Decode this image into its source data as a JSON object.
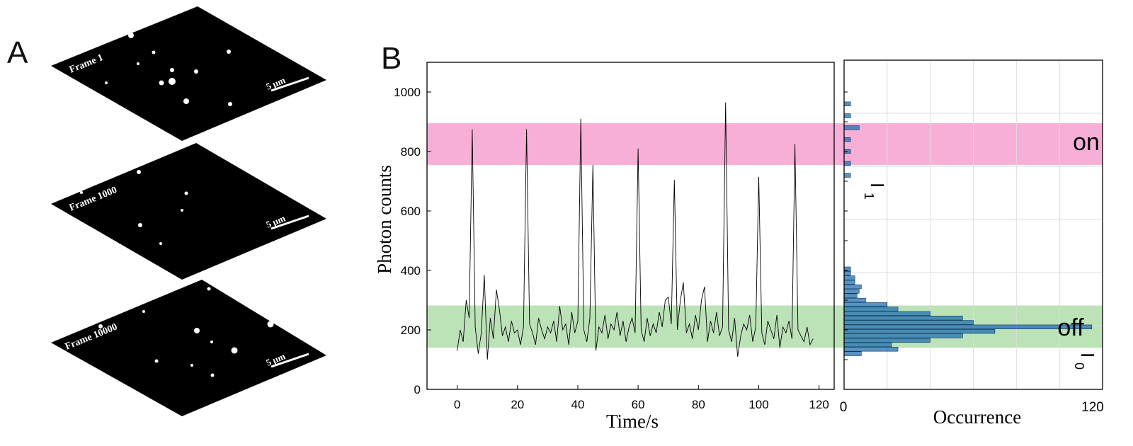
{
  "panel_a": {
    "letter": "A",
    "frames": [
      {
        "label": "Frame 1",
        "scale_label": "5 μm"
      },
      {
        "label": "Frame 1000",
        "scale_label": "5 μm"
      },
      {
        "label": "Frame 10000",
        "scale_label": "5 μm"
      }
    ]
  },
  "panel_b": {
    "letter": "B",
    "band_labels": {
      "on": "on",
      "off": "off",
      "i1": "I",
      "i1_sub": "1",
      "i0": "I",
      "i0_sub": "0"
    }
  },
  "colors": {
    "on_band": "#f7a6d3",
    "off_band": "#b5dfb0",
    "trace": "#000000",
    "hist_bar": "#1f6fb2"
  },
  "chart_data": [
    {
      "type": "line",
      "title": "",
      "xlabel": "Time/s",
      "ylabel": "Photon counts",
      "xlim": [
        -10,
        125
      ],
      "ylim": [
        0,
        1100
      ],
      "xticks": [
        0,
        20,
        40,
        60,
        80,
        100,
        120
      ],
      "yticks": [
        0,
        200,
        400,
        600,
        800,
        1000
      ],
      "bands": [
        {
          "name": "on",
          "y_range": [
            755,
            895
          ]
        },
        {
          "name": "off",
          "y_range": [
            140,
            282
          ]
        }
      ],
      "series": [
        {
          "x": [
            0,
            1,
            2,
            3,
            4,
            5,
            6,
            7,
            8,
            9,
            10,
            11,
            12,
            13,
            14,
            15,
            16,
            17,
            18,
            19,
            20,
            21,
            22,
            23,
            24,
            25,
            26,
            27,
            28,
            29,
            30,
            31,
            32,
            33,
            34,
            35,
            36,
            37,
            38,
            39,
            40,
            41,
            42,
            43,
            44,
            45,
            46,
            47,
            48,
            49,
            50,
            51,
            52,
            53,
            54,
            55,
            56,
            57,
            58,
            59,
            60,
            61,
            62,
            63,
            64,
            65,
            66,
            67,
            68,
            69,
            70,
            71,
            72,
            73,
            74,
            75,
            76,
            77,
            78,
            79,
            80,
            81,
            82,
            83,
            84,
            85,
            86,
            87,
            88,
            89,
            90,
            91,
            92,
            93,
            94,
            95,
            96,
            97,
            98,
            99,
            100,
            101,
            102,
            103,
            104,
            105,
            106,
            107,
            108,
            109,
            110,
            111,
            112,
            113,
            114,
            115,
            116,
            117,
            118
          ],
          "y": [
            130,
            200,
            160,
            300,
            240,
            875,
            210,
            120,
            190,
            385,
            100,
            240,
            170,
            335,
            270,
            180,
            210,
            160,
            230,
            190,
            200,
            150,
            210,
            875,
            220,
            190,
            150,
            240,
            200,
            170,
            210,
            190,
            230,
            160,
            280,
            200,
            220,
            150,
            260,
            190,
            230,
            910,
            200,
            160,
            240,
            755,
            130,
            210,
            190,
            250,
            170,
            220,
            200,
            260,
            180,
            230,
            160,
            210,
            240,
            190,
            810,
            200,
            160,
            240,
            180,
            220,
            190,
            260,
            210,
            300,
            310,
            220,
            705,
            200,
            300,
            360,
            190,
            220,
            170,
            250,
            200,
            300,
            345,
            160,
            230,
            190,
            260,
            180,
            210,
            965,
            200,
            160,
            240,
            110,
            180,
            220,
            200,
            250,
            160,
            210,
            715,
            190,
            150,
            230,
            200,
            170,
            250,
            140,
            210,
            190,
            230,
            170,
            825,
            200,
            180,
            160,
            210,
            150,
            170
          ]
        }
      ]
    },
    {
      "type": "bar",
      "orientation": "horizontal",
      "xlabel": "Occurrence",
      "xlim": [
        0,
        120
      ],
      "xtick_labels": [
        "0",
        "120"
      ],
      "bin_centers": [
        120,
        135,
        150,
        165,
        180,
        195,
        210,
        225,
        240,
        255,
        270,
        285,
        300,
        315,
        330,
        345,
        360,
        375,
        390,
        405,
        720,
        760,
        800,
        840,
        880,
        920,
        960
      ],
      "counts": [
        8,
        25,
        22,
        40,
        55,
        70,
        115,
        60,
        55,
        40,
        25,
        20,
        10,
        6,
        7,
        8,
        5,
        5,
        3,
        3,
        3,
        3,
        3,
        3,
        7,
        3,
        3
      ]
    }
  ]
}
